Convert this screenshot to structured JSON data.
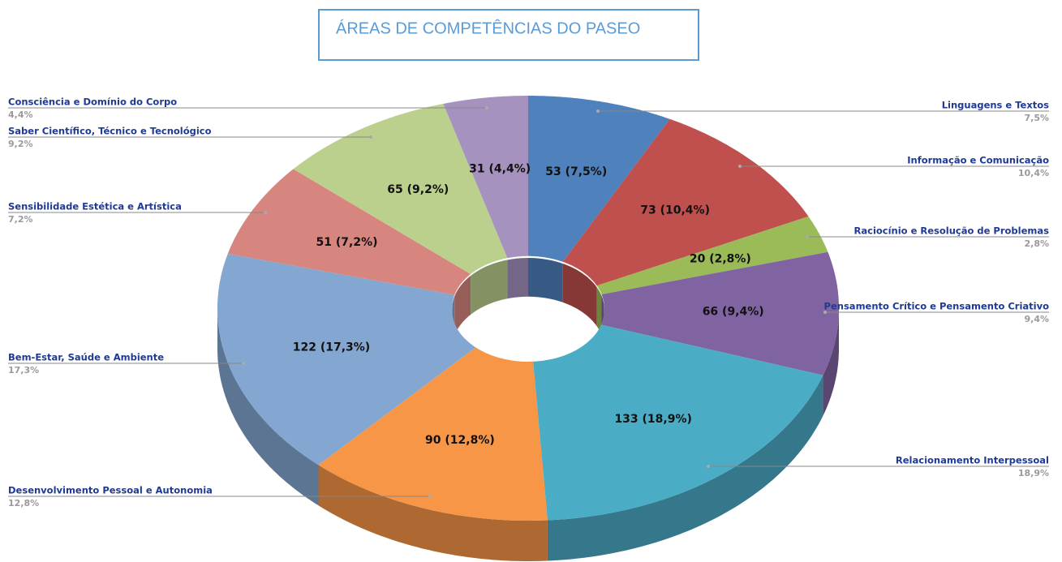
{
  "chart_data": {
    "type": "pie",
    "title": "ÁREAS DE COMPETÊNCIAS DO PASEO",
    "categories": [
      "Linguagens e Textos",
      "Informação e Comunicação",
      "Raciocínio e Resolução de Problemas",
      "Pensamento Crítico e Pensamento Criativo",
      "Relacionamento Interpessoal",
      "Desenvolvimento Pessoal e Autonomia",
      "Bem-Estar, Saúde e Ambiente",
      "Sensibilidade Estética e Artística",
      "Saber Científico, Técnico e Tecnológico",
      "Consciência e Domínio do Corpo"
    ],
    "values": [
      53,
      73,
      20,
      66,
      133,
      90,
      122,
      51,
      65,
      31
    ],
    "value_labels": [
      "53 (7,5%)",
      "73 (10,4%)",
      "20 (2,8%)",
      "66 (9,4%)",
      "133 (18,9%)",
      "90 (12,8%)",
      "122 (17,3%)",
      "51 (7,2%)",
      "65 (9,2%)",
      "31 (4,4%)"
    ],
    "percent_labels": [
      "7,5%",
      "10,4%",
      "2,8%",
      "9,4%",
      "18,9%",
      "12,8%",
      "17,3%",
      "7,2%",
      "9,2%",
      "4,4%"
    ],
    "colors": [
      "#4f81bd",
      "#c0504d",
      "#9bbb59",
      "#8064a2",
      "#4bacc6",
      "#f79646",
      "#84a7d1",
      "#d6857f",
      "#bcd08e",
      "#a692bf"
    ],
    "donut": true,
    "3d": true
  }
}
